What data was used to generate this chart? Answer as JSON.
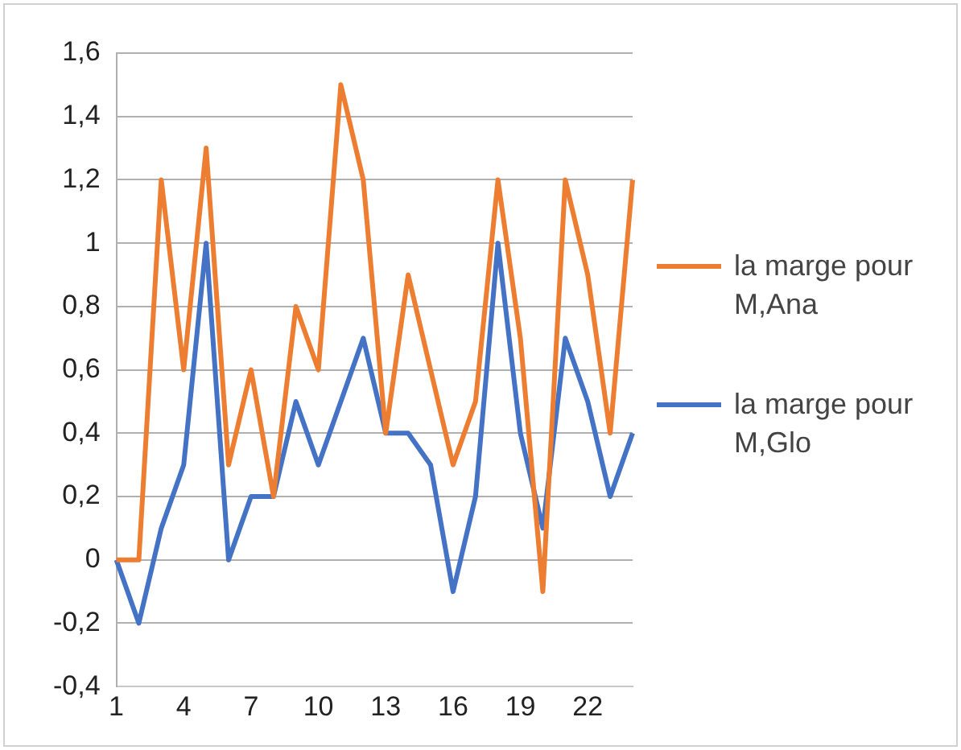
{
  "chart_data": {
    "type": "line",
    "categories": [
      "1",
      null,
      null,
      "4",
      null,
      null,
      "7",
      null,
      null,
      "10",
      null,
      null,
      "13",
      null,
      null,
      "16",
      null,
      null,
      "19",
      null,
      null,
      "22",
      null,
      null
    ],
    "series": [
      {
        "name": "la marge pour M,Ana",
        "color": "#ed7d31",
        "values": [
          0,
          0,
          1.2,
          0.6,
          1.3,
          0.3,
          0.6,
          0.2,
          0.8,
          0.6,
          1.5,
          1.2,
          0.4,
          0.9,
          0.6,
          0.3,
          0.5,
          1.2,
          0.7,
          -0.1,
          1.2,
          0.9,
          0.4,
          1.2
        ]
      },
      {
        "name": "la marge pour M,Glo",
        "color": "#4472c4",
        "values": [
          0,
          -0.2,
          0.1,
          0.3,
          1.0,
          0,
          0.2,
          0.2,
          0.5,
          0.3,
          0.5,
          0.7,
          0.4,
          0.4,
          0.3,
          -0.1,
          0.2,
          1.0,
          0.4,
          0.1,
          0.7,
          0.5,
          0.2,
          0.4
        ]
      }
    ],
    "ylim": [
      -0.4,
      1.6
    ],
    "yticks": [
      {
        "value": -0.4,
        "label": "-0,4"
      },
      {
        "value": -0.2,
        "label": "-0,2"
      },
      {
        "value": 0,
        "label": "0"
      },
      {
        "value": 0.2,
        "label": "0,2"
      },
      {
        "value": 0.4,
        "label": "0,4"
      },
      {
        "value": 0.6,
        "label": "0,6"
      },
      {
        "value": 0.8,
        "label": "0,8"
      },
      {
        "value": 1,
        "label": "1"
      },
      {
        "value": 1.2,
        "label": "1,2"
      },
      {
        "value": 1.4,
        "label": "1,4"
      },
      {
        "value": 1.6,
        "label": "1,6"
      }
    ],
    "grid": "y",
    "legend": "right",
    "marker": "none",
    "line_style": "solid"
  }
}
